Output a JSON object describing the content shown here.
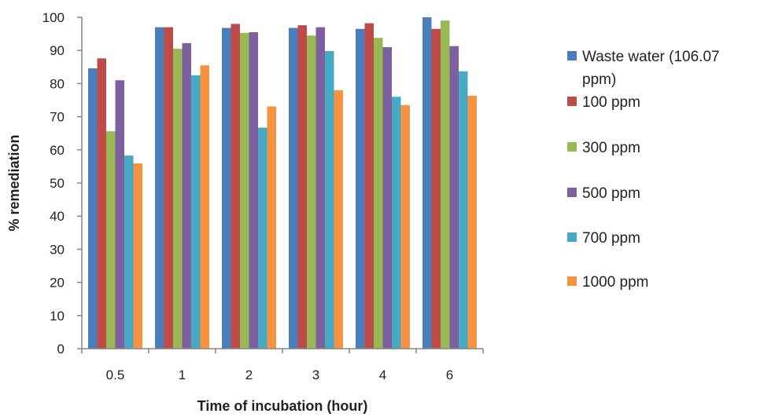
{
  "chart_data": {
    "type": "bar",
    "title": "",
    "xlabel": "Time of incubation (hour)",
    "ylabel": "% remediation",
    "ylim": [
      0,
      100
    ],
    "ytick_step": 10,
    "grid": false,
    "legend_position": "right",
    "categories": [
      "0.5",
      "1",
      "2",
      "3",
      "4",
      "6"
    ],
    "series": [
      {
        "name": "Waste water (106.07 ppm)",
        "name_lines": [
          "Waste water (106.07",
          "ppm)"
        ],
        "color": "#4a7ebb",
        "values": [
          84.6,
          97,
          96.8,
          96.8,
          96.5,
          100
        ]
      },
      {
        "name": "100 ppm",
        "name_lines": [
          "100 ppm"
        ],
        "color": "#be4b48",
        "values": [
          87.6,
          97,
          98,
          97.6,
          98.2,
          96.5
        ]
      },
      {
        "name": "300 ppm",
        "name_lines": [
          "300 ppm"
        ],
        "color": "#98b954",
        "values": [
          65.6,
          90.5,
          95.3,
          94.5,
          93.8,
          99
        ]
      },
      {
        "name": "500 ppm",
        "name_lines": [
          "500 ppm"
        ],
        "color": "#7d60a0",
        "values": [
          81,
          92.2,
          95.5,
          97,
          91,
          91.3
        ]
      },
      {
        "name": "700 ppm",
        "name_lines": [
          "700 ppm"
        ],
        "color": "#46aac5",
        "values": [
          58.3,
          82.5,
          66.7,
          89.8,
          76,
          83.7
        ]
      },
      {
        "name": "1000 ppm",
        "name_lines": [
          "1000 ppm"
        ],
        "color": "#f69240",
        "values": [
          55.9,
          85.5,
          73.1,
          78,
          73.5,
          76.3
        ]
      }
    ]
  }
}
